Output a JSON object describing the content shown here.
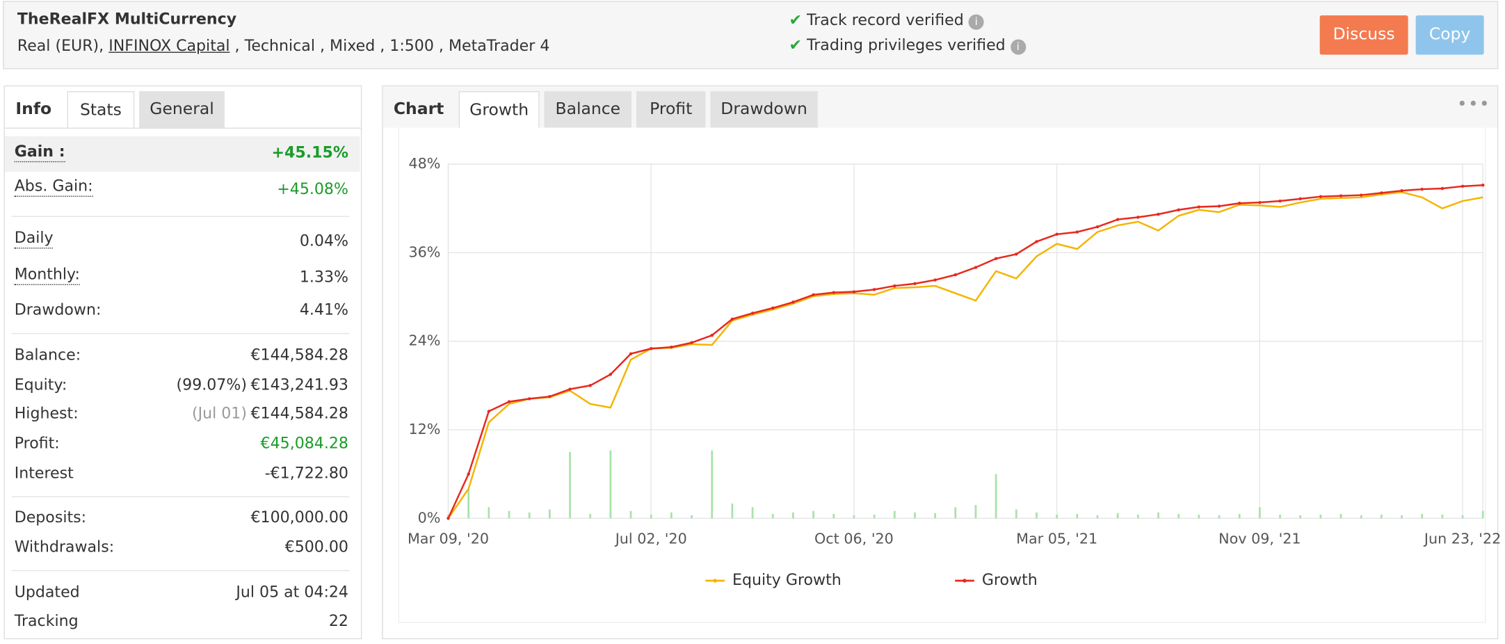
{
  "header": {
    "title": "TheRealFX MultiCurrency",
    "account": [
      "Real (EUR),",
      "INFINOX Capital",
      ", Technical , Mixed , 1:500 , MetaTrader 4"
    ],
    "verifications": [
      "Track record verified",
      "Trading privileges verified"
    ],
    "buttons": [
      "Discuss",
      "Copy"
    ]
  },
  "stats": {
    "tabs": [
      "Info",
      "Stats",
      "General"
    ],
    "rows": [
      {
        "label": "Gain :",
        "value": "+45.15%"
      },
      {
        "label": "Abs. Gain:",
        "value": "+45.08%"
      },
      {
        "label": "Daily",
        "value": "0.04%"
      },
      {
        "label": "Monthly:",
        "value": "1.33%"
      },
      {
        "label": "Drawdown:",
        "value": "4.41%"
      },
      {
        "label": "Balance:",
        "value": "€144,584.28"
      },
      {
        "label": "Equity:",
        "note": "(99.07%)",
        "value": "€143,241.93"
      },
      {
        "label": "Highest:",
        "note": "(Jul 01)",
        "value": "€144,584.28"
      },
      {
        "label": "Profit:",
        "value": "€45,084.28"
      },
      {
        "label": "Interest",
        "value": "-€1,722.80"
      },
      {
        "label": "Deposits:",
        "value": "€100,000.00"
      },
      {
        "label": "Withdrawals:",
        "value": "€500.00"
      },
      {
        "label": "Updated",
        "value": "Jul 05 at 04:24"
      },
      {
        "label": "Tracking",
        "value": "22"
      }
    ]
  },
  "chart_tabs": [
    "Chart",
    "Growth",
    "Balance",
    "Profit",
    "Drawdown"
  ],
  "chart_data": {
    "type": "line",
    "categories": [
      "Mar 09, '20",
      null,
      null,
      null,
      null,
      null,
      null,
      null,
      null,
      null,
      "Jul 02, '20",
      null,
      null,
      null,
      null,
      null,
      null,
      null,
      null,
      null,
      "Oct 06, '20",
      null,
      null,
      null,
      null,
      null,
      null,
      null,
      null,
      null,
      "Mar 05, '21",
      null,
      null,
      null,
      null,
      null,
      null,
      null,
      null,
      null,
      "Nov 09, '21",
      null,
      null,
      null,
      null,
      null,
      null,
      null,
      null,
      null,
      "Jun 23, '22",
      null
    ],
    "series": [
      {
        "name": "Equity Growth",
        "color": "#f5b400",
        "values": [
          0,
          4,
          13,
          15.5,
          16.2,
          16.4,
          17.3,
          15.5,
          15,
          21.5,
          23,
          23.1,
          23.6,
          23.5,
          26.8,
          27.6,
          28.3,
          29.1,
          30.1,
          30.4,
          30.5,
          30.3,
          31.2,
          31.3,
          31.5,
          30.5,
          29.5,
          33.5,
          32.5,
          35.5,
          37.2,
          36.5,
          38.8,
          39.7,
          40.2,
          39,
          41,
          41.8,
          41.5,
          42.5,
          42.4,
          42.2,
          42.8,
          43.3,
          43.4,
          43.5,
          43.9,
          44.2,
          43.5,
          42,
          43,
          43.5
        ]
      },
      {
        "name": "Growth",
        "color": "#e8281e",
        "values": [
          0,
          6,
          14.5,
          15.8,
          16.2,
          16.5,
          17.5,
          18,
          19.5,
          22.3,
          23,
          23.2,
          23.8,
          24.8,
          27,
          27.8,
          28.5,
          29.3,
          30.3,
          30.6,
          30.7,
          31,
          31.5,
          31.8,
          32.3,
          33,
          34,
          35.2,
          35.8,
          37.5,
          38.5,
          38.8,
          39.5,
          40.5,
          40.8,
          41.2,
          41.8,
          42.2,
          42.3,
          42.7,
          42.8,
          43,
          43.3,
          43.6,
          43.7,
          43.8,
          44.1,
          44.4,
          44.6,
          44.7,
          45,
          45.15
        ]
      },
      {
        "color": "#a8e3a8",
        "values": [
          0.5,
          4,
          1.5,
          1,
          0.8,
          1.2,
          9,
          0.6,
          9.2,
          1,
          0.5,
          0.8,
          0.4,
          9.2,
          2,
          1.5,
          0.6,
          0.8,
          1,
          0.6,
          0.4,
          0.5,
          1,
          0.8,
          0.7,
          1.5,
          1.8,
          6,
          1.2,
          0.8,
          0.5,
          0.6,
          0.4,
          0.7,
          0.5,
          0.8,
          0.6,
          0.5,
          0.4,
          0.6,
          1.5,
          0.5,
          0.4,
          0.5,
          0.6,
          0.4,
          0.5,
          0.4,
          0.6,
          0.5,
          0.4,
          1
        ]
      }
    ],
    "ylim": [
      0,
      48
    ],
    "yticks": [
      {
        "value": 0,
        "label": "0%"
      },
      {
        "value": 12,
        "label": "12%"
      },
      {
        "value": 24,
        "label": "24%"
      },
      {
        "value": 36,
        "label": "36%"
      },
      {
        "value": 48,
        "label": "48%"
      }
    ],
    "grid": true
  }
}
